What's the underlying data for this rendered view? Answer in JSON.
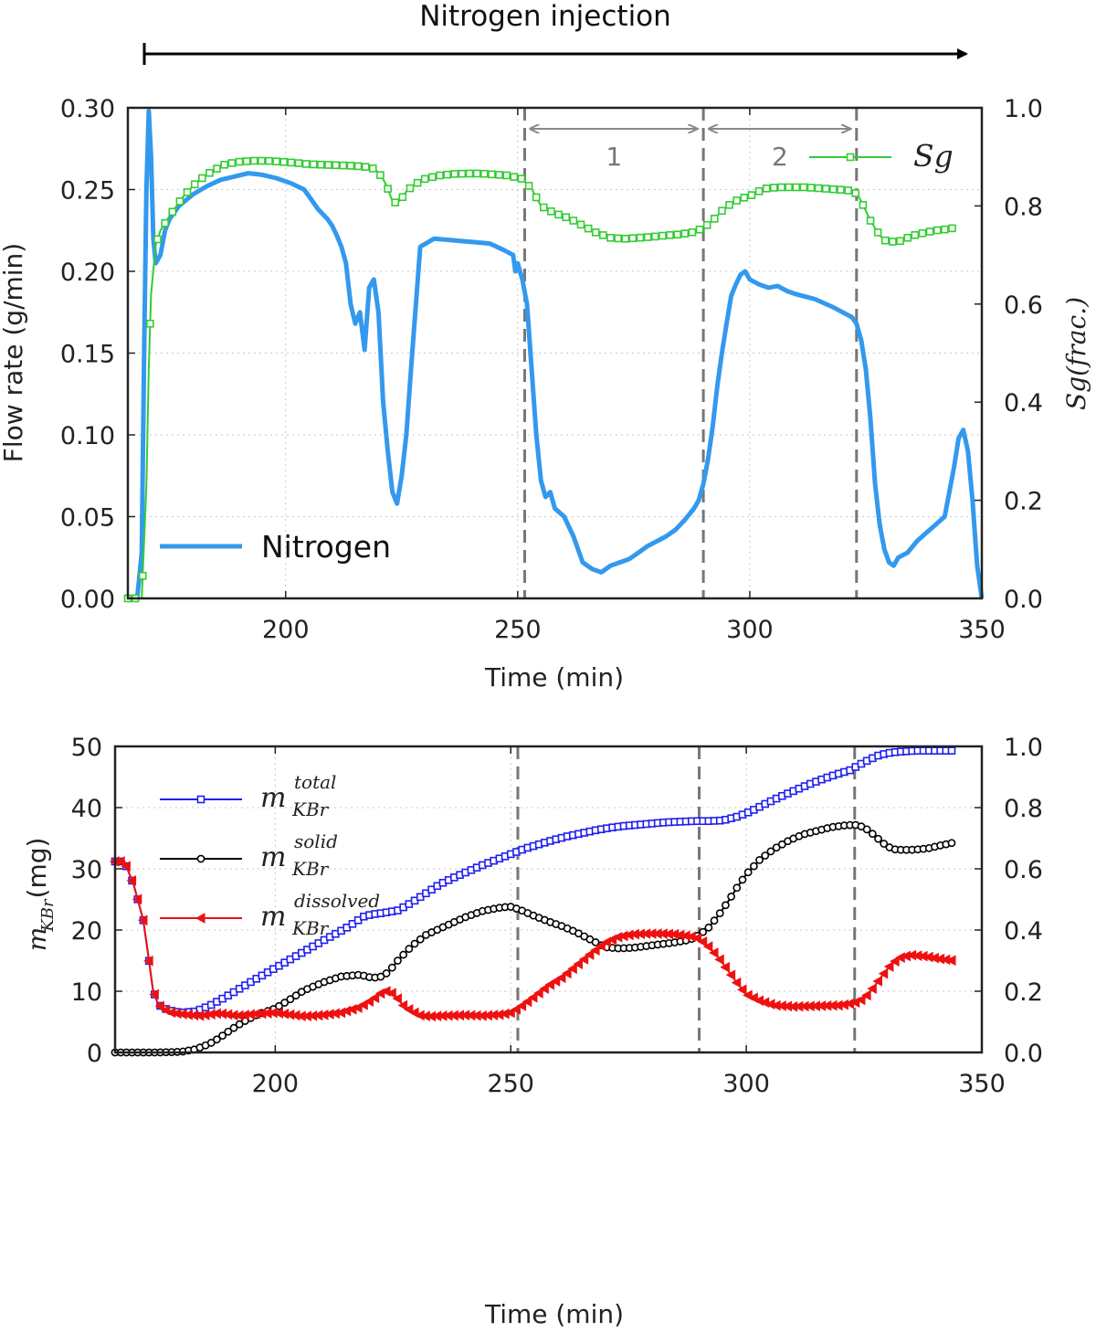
{
  "header": {
    "label": "Nitrogen injection"
  },
  "chart_data": [
    {
      "type": "line",
      "xlabel": "Time (min)",
      "ylabel": "Flow rate (g/min)",
      "y2label": "Sg(frac.)",
      "xlim": [
        166,
        350
      ],
      "ylim": [
        0,
        0.3
      ],
      "y2lim": [
        0,
        1.0
      ],
      "xticks": [
        "200",
        "250",
        "300",
        "350"
      ],
      "yticks": [
        "0.00",
        "0.05",
        "0.10",
        "0.15",
        "0.20",
        "0.25",
        "0.30"
      ],
      "y2ticks": [
        "0.0",
        "0.2",
        "0.4",
        "0.6",
        "0.8",
        "1.0"
      ],
      "grid": true,
      "vlines": [
        251.5,
        290,
        323
      ],
      "periods": [
        {
          "label": "1",
          "from": 251.5,
          "to": 290
        },
        {
          "label": "2",
          "from": 290,
          "to": 323
        }
      ],
      "series": [
        {
          "name": "Nitrogen",
          "axis": "left",
          "color": "#3399ee",
          "legend": "bottom-left",
          "x": [
            166,
            167,
            168,
            169,
            169.5,
            170,
            170.5,
            171,
            171.5,
            172,
            173,
            174,
            175,
            177,
            180,
            183,
            186,
            189,
            192,
            195,
            198,
            201,
            204,
            207,
            209,
            210,
            211,
            212,
            213,
            214,
            215,
            216,
            217,
            218,
            219,
            220,
            221,
            222,
            223,
            224,
            225,
            226,
            227,
            229,
            232,
            236,
            240,
            244,
            247,
            249,
            249.5,
            250,
            251,
            252,
            253,
            254,
            255,
            256,
            257,
            258,
            260,
            262,
            264,
            266,
            268,
            270,
            272,
            274,
            276,
            278,
            280,
            282,
            284,
            286,
            288,
            289,
            290,
            291,
            292,
            293,
            294,
            295,
            296,
            297,
            298,
            299,
            300,
            302,
            304,
            306,
            308,
            310,
            314,
            318,
            320,
            322,
            323,
            324,
            325,
            326,
            327,
            328,
            329,
            330,
            331,
            332,
            334,
            336,
            338,
            340,
            342,
            343,
            344,
            345,
            346,
            347,
            348,
            349,
            350
          ],
          "y": [
            0.0,
            0.0,
            0.0,
            0.028,
            0.15,
            0.25,
            0.298,
            0.27,
            0.22,
            0.205,
            0.21,
            0.225,
            0.232,
            0.24,
            0.247,
            0.252,
            0.256,
            0.258,
            0.26,
            0.259,
            0.257,
            0.254,
            0.25,
            0.238,
            0.232,
            0.228,
            0.222,
            0.215,
            0.205,
            0.18,
            0.168,
            0.175,
            0.152,
            0.19,
            0.195,
            0.175,
            0.12,
            0.09,
            0.065,
            0.058,
            0.075,
            0.1,
            0.14,
            0.215,
            0.22,
            0.219,
            0.218,
            0.217,
            0.213,
            0.21,
            0.2,
            0.205,
            0.195,
            0.18,
            0.14,
            0.1,
            0.072,
            0.062,
            0.065,
            0.055,
            0.05,
            0.038,
            0.022,
            0.018,
            0.016,
            0.02,
            0.022,
            0.024,
            0.028,
            0.032,
            0.035,
            0.038,
            0.042,
            0.048,
            0.055,
            0.06,
            0.07,
            0.085,
            0.105,
            0.13,
            0.15,
            0.168,
            0.185,
            0.192,
            0.198,
            0.2,
            0.195,
            0.192,
            0.19,
            0.191,
            0.188,
            0.186,
            0.183,
            0.178,
            0.175,
            0.172,
            0.168,
            0.158,
            0.14,
            0.11,
            0.07,
            0.045,
            0.03,
            0.022,
            0.02,
            0.025,
            0.028,
            0.035,
            0.04,
            0.045,
            0.05,
            0.065,
            0.08,
            0.098,
            0.103,
            0.09,
            0.06,
            0.02,
            0.0
          ]
        },
        {
          "name": "Sg",
          "axis": "right",
          "color": "#33cc33",
          "marker": "square",
          "legend": "top-right",
          "x": [
            166,
            168,
            169,
            170,
            170.5,
            171,
            172,
            173,
            175,
            178,
            181,
            184,
            187,
            190,
            193,
            196,
            199,
            202,
            205,
            208,
            211,
            214,
            217,
            219,
            220,
            221,
            222,
            223,
            224,
            225,
            226,
            228,
            230,
            233,
            236,
            239,
            242,
            245,
            248,
            251,
            253,
            255,
            258,
            261,
            264,
            267,
            270,
            273,
            276,
            279,
            282,
            285,
            288,
            290,
            292,
            294,
            296,
            298,
            300,
            303,
            306,
            309,
            312,
            315,
            318,
            321,
            322,
            323,
            324,
            325,
            326,
            327,
            328,
            329,
            330,
            331,
            332,
            334,
            336,
            338,
            340,
            342,
            344
          ],
          "y": [
            0.0,
            0.0,
            0.0,
            0.23,
            0.47,
            0.62,
            0.72,
            0.75,
            0.78,
            0.82,
            0.85,
            0.87,
            0.885,
            0.89,
            0.892,
            0.892,
            0.89,
            0.888,
            0.885,
            0.884,
            0.883,
            0.882,
            0.88,
            0.876,
            0.868,
            0.855,
            0.835,
            0.81,
            0.805,
            0.815,
            0.83,
            0.845,
            0.855,
            0.862,
            0.865,
            0.866,
            0.866,
            0.864,
            0.862,
            0.855,
            0.835,
            0.8,
            0.785,
            0.775,
            0.76,
            0.745,
            0.735,
            0.733,
            0.735,
            0.737,
            0.74,
            0.742,
            0.747,
            0.755,
            0.77,
            0.79,
            0.805,
            0.815,
            0.82,
            0.835,
            0.838,
            0.838,
            0.838,
            0.836,
            0.834,
            0.832,
            0.83,
            0.825,
            0.81,
            0.79,
            0.77,
            0.755,
            0.74,
            0.73,
            0.728,
            0.727,
            0.727,
            0.735,
            0.742,
            0.746,
            0.75,
            0.752,
            0.755
          ]
        }
      ]
    },
    {
      "type": "line",
      "xlabel": "Time (min)",
      "ylabel": "m_KBr (mg)",
      "xlim": [
        166,
        350
      ],
      "ylim": [
        0,
        50
      ],
      "y2lim": [
        0,
        1.0
      ],
      "xticks": [
        "200",
        "250",
        "300",
        "350"
      ],
      "yticks": [
        "0",
        "10",
        "20",
        "30",
        "40",
        "50"
      ],
      "y2ticks": [
        "0.0",
        "0.2",
        "0.4",
        "0.6",
        "0.8",
        "1.0"
      ],
      "grid": true,
      "vlines": [
        251.5,
        290,
        323
      ],
      "legend": "top-left",
      "series": [
        {
          "name": "total",
          "sub": "KBr",
          "color": "#1f1fee",
          "marker": "square",
          "x": [
            166,
            168,
            170,
            172,
            173,
            174,
            175,
            176,
            178,
            180,
            183,
            186,
            190,
            195,
            200,
            205,
            210,
            215,
            219,
            221,
            223,
            226,
            229,
            232,
            235,
            238,
            241,
            244,
            247,
            250,
            253,
            256,
            259,
            262,
            265,
            268,
            271,
            274,
            277,
            280,
            283,
            286,
            289,
            292,
            295,
            298,
            301,
            304,
            307,
            310,
            313,
            316,
            319,
            322,
            324,
            326,
            328,
            330,
            332,
            334,
            336,
            338,
            340,
            342,
            344
          ],
          "y": [
            31.2,
            31.2,
            27.3,
            21.6,
            16.1,
            10.4,
            8.1,
            7.3,
            6.8,
            6.5,
            6.7,
            7.6,
            9.3,
            11.6,
            13.8,
            16.0,
            18.2,
            20.3,
            22.3,
            22.6,
            22.8,
            23.2,
            24.5,
            26.0,
            27.5,
            28.6,
            29.6,
            30.6,
            31.5,
            32.4,
            33.3,
            34.0,
            34.7,
            35.3,
            35.8,
            36.3,
            36.7,
            37.0,
            37.2,
            37.4,
            37.6,
            37.7,
            37.8,
            37.8,
            37.9,
            38.5,
            39.4,
            40.6,
            41.7,
            42.7,
            43.7,
            44.6,
            45.4,
            46.1,
            47.0,
            47.8,
            48.5,
            48.9,
            49.1,
            49.2,
            49.3,
            49.3,
            49.3,
            49.3,
            49.3
          ]
        },
        {
          "name": "solid",
          "sub": "KBr",
          "color": "#000000",
          "marker": "circle",
          "x": [
            166,
            170,
            175,
            180,
            183,
            186,
            188,
            190,
            193,
            196,
            200,
            203,
            206,
            210,
            214,
            218,
            220,
            222,
            224,
            226,
            229,
            232,
            236,
            240,
            244,
            248,
            250,
            252,
            255,
            258,
            261,
            264,
            267,
            270,
            273,
            276,
            279,
            282,
            285,
            288,
            290,
            292,
            294,
            296,
            298,
            300,
            303,
            306,
            309,
            312,
            315,
            318,
            321,
            323,
            325,
            327,
            329,
            331,
            333,
            335,
            337,
            339,
            341,
            343,
            344
          ],
          "y": [
            0.0,
            0.0,
            0.0,
            0.1,
            0.5,
            1.4,
            2.3,
            3.4,
            4.9,
            6.1,
            7.2,
            8.6,
            10.1,
            11.4,
            12.4,
            12.7,
            12.3,
            12.2,
            13.1,
            15.0,
            17.4,
            19.2,
            20.6,
            22.0,
            23.1,
            23.7,
            23.8,
            23.3,
            22.3,
            21.4,
            20.6,
            19.6,
            18.4,
            17.2,
            17.0,
            17.1,
            17.4,
            17.7,
            18.0,
            18.4,
            19.2,
            20.4,
            22.3,
            24.5,
            26.9,
            29.1,
            31.6,
            33.3,
            34.6,
            35.6,
            36.2,
            36.8,
            37.1,
            37.2,
            36.8,
            35.6,
            34.2,
            33.2,
            33.1,
            33.1,
            33.2,
            33.4,
            33.8,
            34.1,
            34.3
          ]
        },
        {
          "name": "dissolved",
          "sub": "KBr",
          "color": "#ee1111",
          "marker": "triangle-left",
          "x": [
            166,
            168,
            170,
            172,
            173,
            174,
            175,
            176,
            178,
            181,
            184,
            188,
            192,
            196,
            200,
            203,
            206,
            210,
            214,
            218,
            221,
            223,
            224,
            225,
            226,
            227,
            229,
            231,
            233,
            236,
            240,
            244,
            248,
            250,
            252,
            255,
            258,
            261,
            264,
            267,
            270,
            273,
            276,
            279,
            282,
            285,
            288,
            290,
            292,
            294,
            296,
            298,
            300,
            303,
            306,
            310,
            315,
            320,
            323,
            325,
            327,
            329,
            331,
            333,
            335,
            338,
            341,
            344
          ],
          "y": [
            31.2,
            31.2,
            27.3,
            21.6,
            16.1,
            10.4,
            8.1,
            7.2,
            6.5,
            6.2,
            6.0,
            6.4,
            6.0,
            6.3,
            6.5,
            6.2,
            5.9,
            6.1,
            6.5,
            7.4,
            8.8,
            10.0,
            10.0,
            9.6,
            8.8,
            7.8,
            6.7,
            6.0,
            5.9,
            6.0,
            6.1,
            6.0,
            6.2,
            6.5,
            7.4,
            9.1,
            10.9,
            12.3,
            14.2,
            16.1,
            17.9,
            18.9,
            19.3,
            19.4,
            19.4,
            19.3,
            19.0,
            18.6,
            17.3,
            15.6,
            13.5,
            11.4,
            9.5,
            8.4,
            7.7,
            7.5,
            7.6,
            7.7,
            8.1,
            8.8,
            10.6,
            12.7,
            14.6,
            15.6,
            15.9,
            15.7,
            15.3,
            15.0
          ]
        }
      ]
    }
  ]
}
